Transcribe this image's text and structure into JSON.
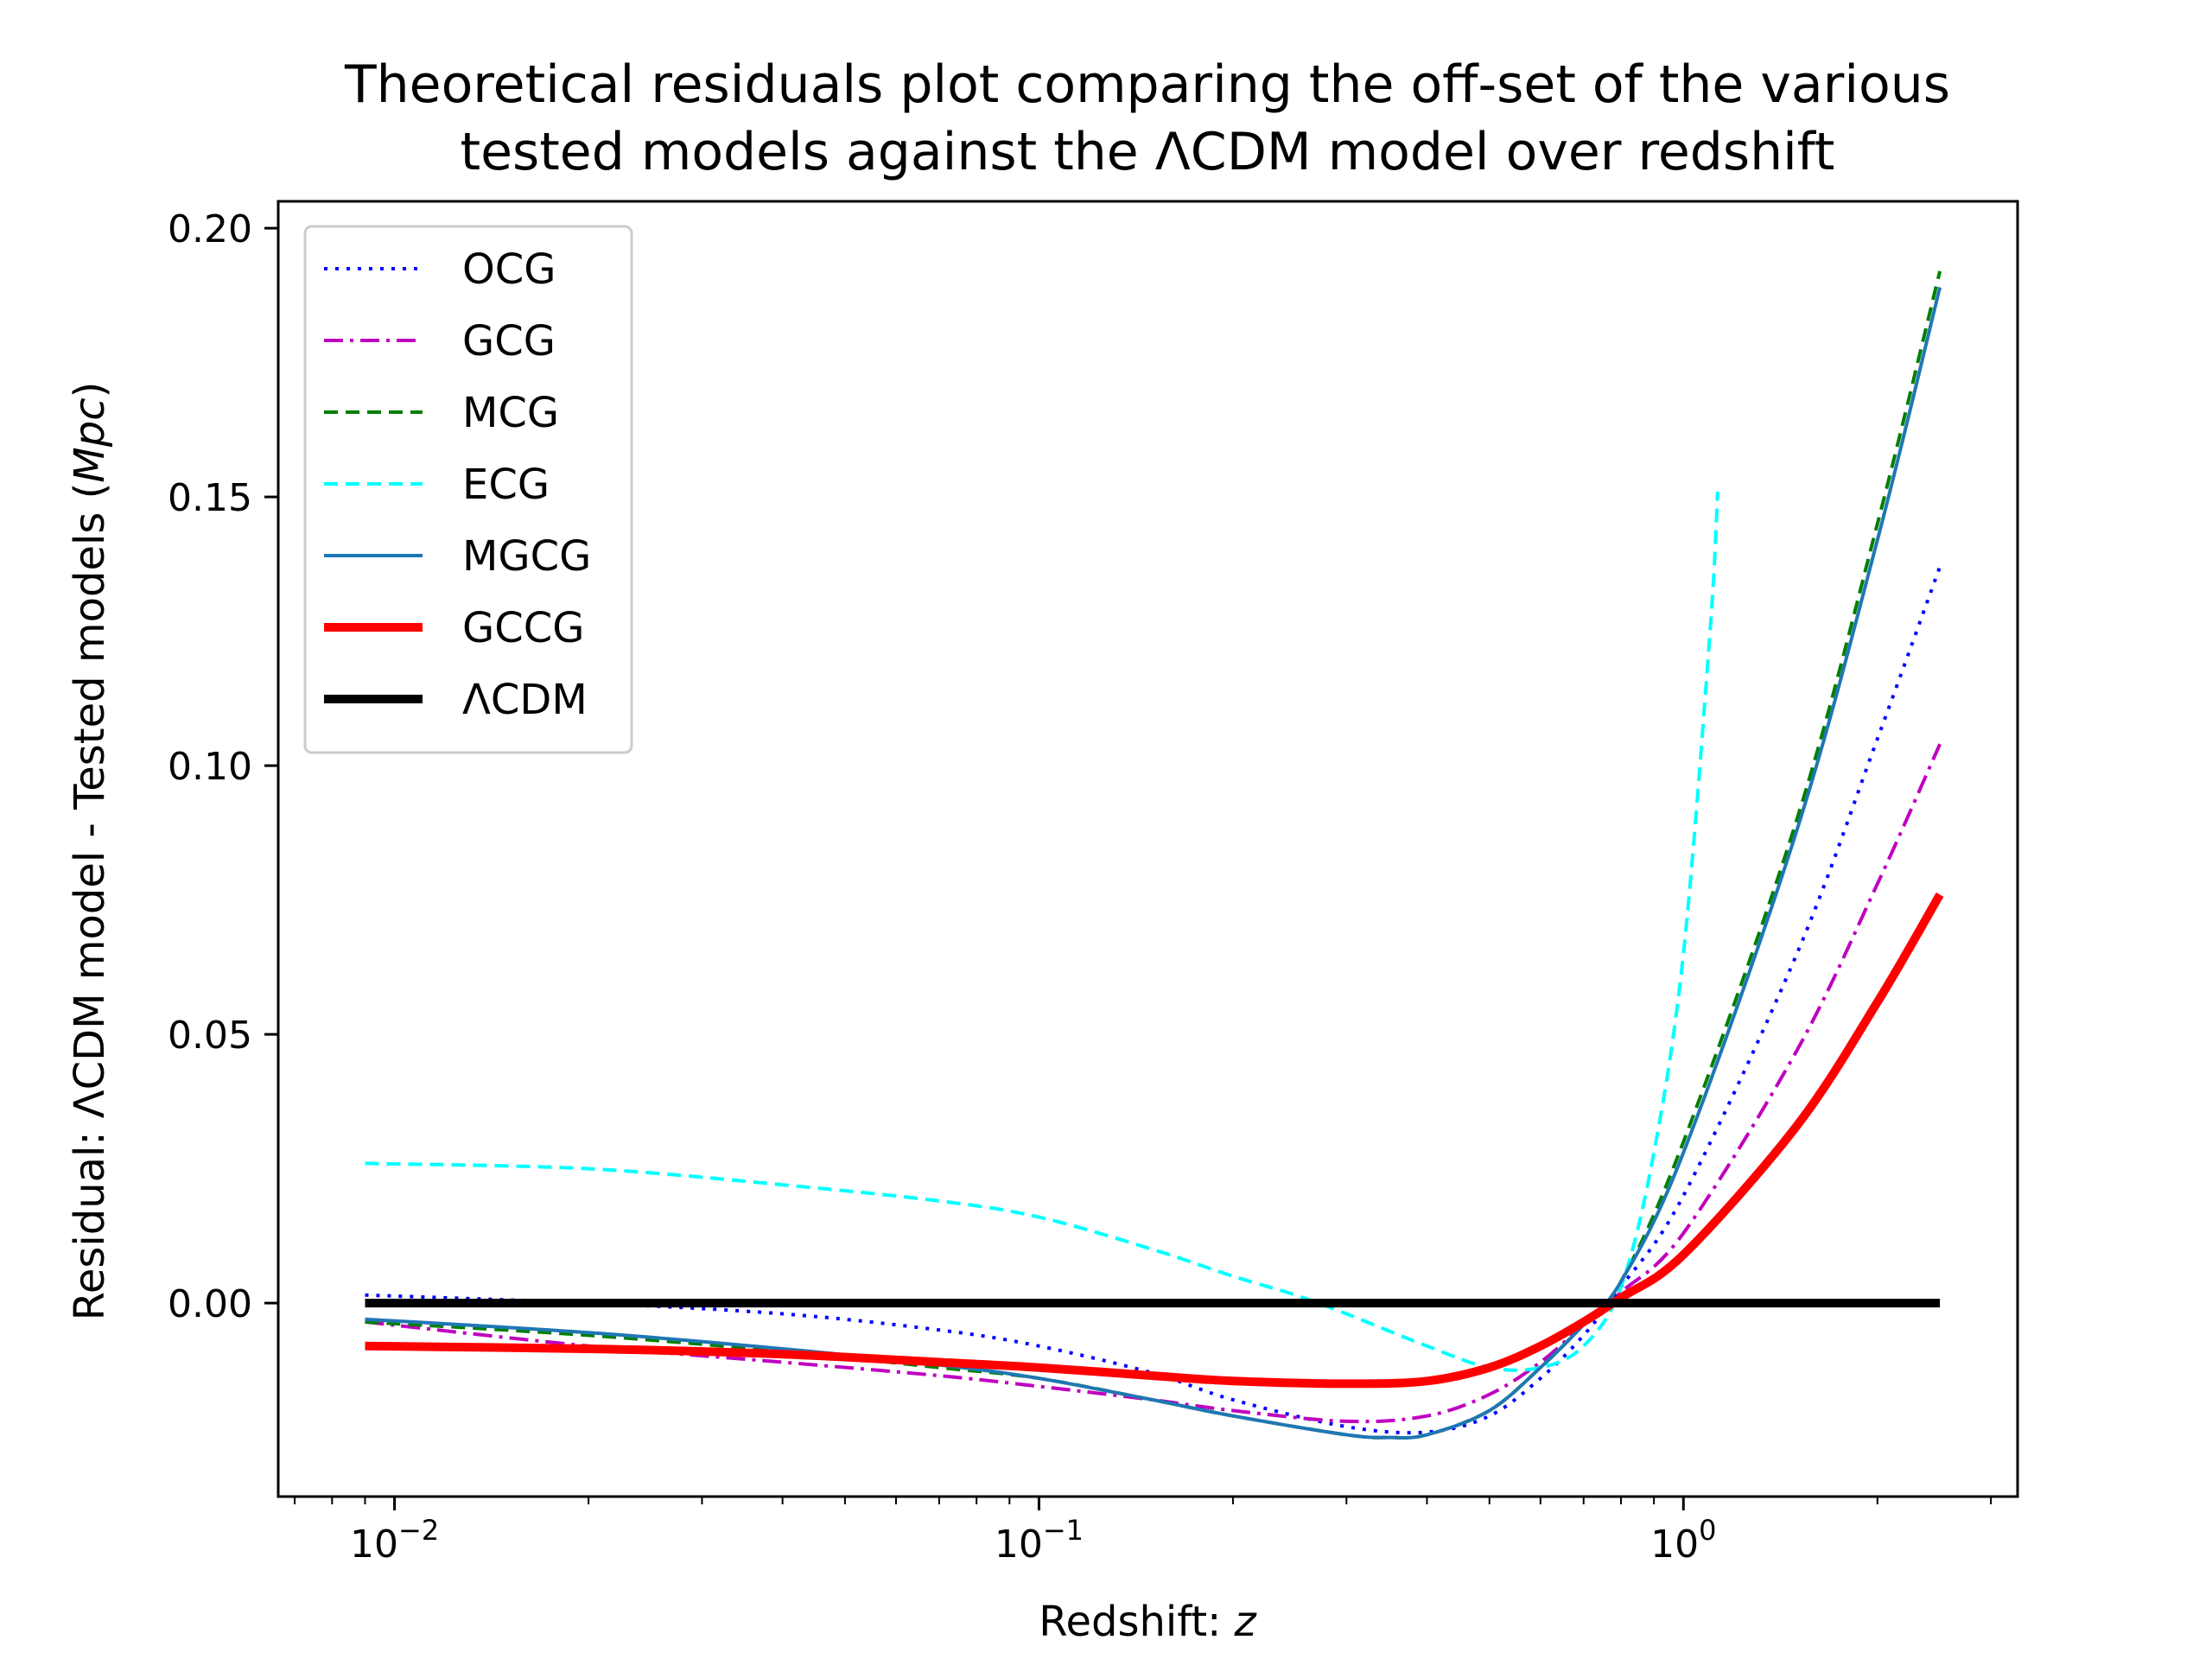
{
  "chart_data": {
    "type": "line",
    "title": [
      "Theoretical residuals plot comparing the off-set of the various",
      "tested models against the ΛCDM model over redshift"
    ],
    "xlabel": "Redshift: ",
    "xlabel_var": "z",
    "ylabel": "Residual: ΛCDM model - Tested models (",
    "ylabel_unit": "Mpc",
    "ylabel_close": ")",
    "xscale": "log",
    "xlim": [
      0.0066,
      3.3
    ],
    "ylim": [
      -0.036,
      0.205
    ],
    "xticks": [
      {
        "value": 0.01,
        "base": "10",
        "exp": "−2"
      },
      {
        "value": 0.1,
        "base": "10",
        "exp": "−1"
      },
      {
        "value": 1,
        "base": "10",
        "exp": "0"
      }
    ],
    "yticks": [
      {
        "value": 0.0,
        "label": "0.00"
      },
      {
        "value": 0.05,
        "label": "0.05"
      },
      {
        "value": 0.1,
        "label": "0.10"
      },
      {
        "value": 0.15,
        "label": "0.15"
      },
      {
        "value": 0.2,
        "label": "0.20"
      }
    ],
    "legend_position": "upper-left",
    "series": [
      {
        "name": "OCG",
        "color": "#0000ff",
        "style": "dotted",
        "width": 4,
        "x": [
          0.009,
          0.02,
          0.04,
          0.07,
          0.1,
          0.15,
          0.2,
          0.3,
          0.4,
          0.5,
          0.6,
          0.7,
          0.8,
          1.0,
          1.5,
          2.0,
          2.5
        ],
        "y": [
          0.0015,
          0.0,
          -0.002,
          -0.005,
          -0.008,
          -0.013,
          -0.018,
          -0.023,
          -0.024,
          -0.021,
          -0.014,
          -0.006,
          0.003,
          0.02,
          0.065,
          0.105,
          0.137
        ]
      },
      {
        "name": "GCG",
        "color": "#bf00bf",
        "style": "dashdot",
        "width": 4,
        "x": [
          0.009,
          0.02,
          0.04,
          0.07,
          0.1,
          0.15,
          0.2,
          0.3,
          0.4,
          0.5,
          0.6,
          0.7,
          0.8,
          1.0,
          1.5,
          2.0,
          2.5
        ],
        "y": [
          -0.0035,
          -0.008,
          -0.011,
          -0.0135,
          -0.0155,
          -0.018,
          -0.02,
          -0.022,
          -0.021,
          -0.017,
          -0.011,
          -0.004,
          0.002,
          0.013,
          0.047,
          0.078,
          0.104
        ]
      },
      {
        "name": "MCG",
        "color": "#007f00",
        "style": "dashed",
        "width": 4,
        "x": [
          0.009,
          0.02,
          0.04,
          0.07,
          0.1,
          0.15,
          0.2,
          0.3,
          0.35,
          0.4,
          0.5,
          0.6,
          0.7,
          0.8,
          1.0,
          1.5,
          2.0,
          2.5
        ],
        "y": [
          -0.0035,
          -0.006,
          -0.009,
          -0.012,
          -0.014,
          -0.018,
          -0.021,
          -0.0245,
          -0.025,
          -0.0245,
          -0.02,
          -0.012,
          -0.004,
          0.004,
          0.03,
          0.09,
          0.145,
          0.192
        ]
      },
      {
        "name": "ECG",
        "color": "#00ffff",
        "style": "dashed",
        "width": 4,
        "x": [
          0.009,
          0.02,
          0.04,
          0.07,
          0.1,
          0.15,
          0.2,
          0.25,
          0.3,
          0.4,
          0.5,
          0.6,
          0.7,
          0.8,
          0.9,
          1.0,
          1.1,
          1.13
        ],
        "y": [
          0.026,
          0.025,
          0.022,
          0.019,
          0.016,
          0.01,
          0.005,
          0.0015,
          -0.002,
          -0.008,
          -0.012,
          -0.012,
          -0.008,
          0.003,
          0.028,
          0.065,
          0.125,
          0.151
        ]
      },
      {
        "name": "MGCG",
        "color": "#1f77b4",
        "style": "solid",
        "width": 4,
        "x": [
          0.009,
          0.02,
          0.04,
          0.07,
          0.1,
          0.15,
          0.2,
          0.3,
          0.35,
          0.4,
          0.5,
          0.6,
          0.7,
          0.8,
          1.0,
          1.5,
          2.0,
          2.5
        ],
        "y": [
          -0.003,
          -0.0055,
          -0.0085,
          -0.0115,
          -0.014,
          -0.018,
          -0.021,
          -0.0245,
          -0.025,
          -0.0245,
          -0.02,
          -0.012,
          -0.004,
          0.004,
          0.028,
          0.088,
          0.142,
          0.189
        ]
      },
      {
        "name": "GCCG",
        "color": "#ff0000",
        "style": "solid",
        "width": 10,
        "x": [
          0.009,
          0.02,
          0.04,
          0.07,
          0.1,
          0.15,
          0.2,
          0.3,
          0.4,
          0.5,
          0.6,
          0.7,
          0.8,
          1.0,
          1.5,
          2.0,
          2.5
        ],
        "y": [
          -0.008,
          -0.0085,
          -0.0095,
          -0.011,
          -0.012,
          -0.0135,
          -0.0145,
          -0.015,
          -0.0145,
          -0.012,
          -0.008,
          -0.0035,
          0.001,
          0.009,
          0.033,
          0.056,
          0.076
        ]
      },
      {
        "name": "ΛCDM",
        "color": "#000000",
        "style": "solid",
        "width": 10,
        "x": [
          0.009,
          2.5
        ],
        "y": [
          0.0,
          0.0
        ]
      }
    ]
  }
}
